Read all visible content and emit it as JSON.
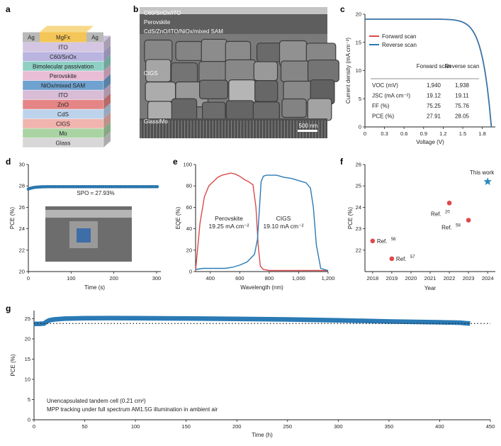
{
  "colors": {
    "red": "#d94b4b",
    "blue": "#2a7ab5",
    "scatter_red": "#e04848",
    "star": "#2a8aba",
    "dark": "#222222"
  },
  "panel_labels": {
    "a": "a",
    "b": "b",
    "c": "c",
    "d": "d",
    "e": "e",
    "f": "f",
    "g": "g"
  },
  "panel_a": {
    "layers": [
      {
        "label": "Glass",
        "color": "#d7d7d7"
      },
      {
        "label": "Mo",
        "color": "#a9d3a3"
      },
      {
        "label": "CIGS",
        "color": "#f1b4ae"
      },
      {
        "label": "CdS",
        "color": "#bdd3ec"
      },
      {
        "label": "ZnO",
        "color": "#e58585"
      },
      {
        "label": "ITO",
        "color": "#d9bcd6"
      },
      {
        "label": "NiOx/mixed SAM",
        "color": "#6fa2cf"
      },
      {
        "label": "Perovskite",
        "color": "#e9bdd6"
      },
      {
        "label": "Bimolecular passivation",
        "color": "#8fcfc4"
      },
      {
        "label": "C60/SnOx",
        "color": "#b9b5e0"
      },
      {
        "label": "ITO",
        "color": "#d4c6e2"
      }
    ],
    "top": {
      "left": "Ag",
      "center": "MgFx",
      "right": "Ag"
    }
  },
  "panel_b": {
    "labels": {
      "top": "C60/SnOx/ITO",
      "perovskite": "Perovskite",
      "stack": "CdS/ZnO/ITO/NiOx/mixed SAM",
      "cigs": "CIGS",
      "glass": "Glass/Mo"
    },
    "scalebar": "500 nm"
  },
  "chart_data": [
    {
      "panel": "c",
      "type": "line",
      "xlabel": "Voltage (V)",
      "ylabel": "Current density (mA cm⁻²)",
      "xlim": [
        0,
        2.0
      ],
      "ylim": [
        0,
        20
      ],
      "xticks": [
        "0",
        "0.3",
        "0.6",
        "0.9",
        "1.2",
        "1.5",
        "1.8"
      ],
      "yticks": [
        "0",
        "5",
        "10",
        "15",
        "20"
      ],
      "legend": "top-left",
      "series": [
        {
          "name": "Forward scan",
          "color": "#d94b4b",
          "voc": 1.94,
          "jsc": 19.12
        },
        {
          "name": "Reverse scan",
          "color": "#2a7ab5",
          "voc": 1.938,
          "jsc": 19.11
        }
      ],
      "table": {
        "headers": [
          "",
          "Forward scan",
          "Reverse scan"
        ],
        "rows": [
          [
            "VOC (mV)",
            "1,940",
            "1,938"
          ],
          [
            "JSC (mA cm⁻²)",
            "19.12",
            "19.11"
          ],
          [
            "FF (%)",
            "75.25",
            "75.76"
          ],
          [
            "PCE (%)",
            "27.91",
            "28.05"
          ]
        ]
      }
    },
    {
      "panel": "d",
      "type": "scatter",
      "xlabel": "Time (s)",
      "ylabel": "PCE (%)",
      "xlim": [
        0,
        310
      ],
      "ylim": [
        20,
        30
      ],
      "xticks": [
        "0",
        "100",
        "200",
        "300"
      ],
      "yticks": [
        "20",
        "22",
        "24",
        "26",
        "28",
        "30"
      ],
      "annotation": "SPO = 27.93%",
      "series": [
        {
          "name": "SPO",
          "color": "#2a7ab5",
          "start": 27.7,
          "steady": 27.93
        }
      ]
    },
    {
      "panel": "e",
      "type": "line",
      "xlabel": "Wavelength (nm)",
      "ylabel": "EQE (%)",
      "xlim": [
        300,
        1200
      ],
      "ylim": [
        0,
        100
      ],
      "xticks": [
        "400",
        "600",
        "800",
        "1,000",
        "1,200"
      ],
      "yticks": [
        "0",
        "20",
        "40",
        "60",
        "80",
        "100"
      ],
      "series": [
        {
          "name": "Perovskite",
          "color": "#d94b4b",
          "label": "Perovskite",
          "value": "19.25 mA cm⁻²",
          "x": [
            300,
            330,
            360,
            390,
            420,
            450,
            480,
            510,
            540,
            570,
            600,
            630,
            660,
            690,
            710,
            725,
            740,
            760,
            800,
            900,
            1000,
            1100,
            1200
          ],
          "y": [
            1,
            45,
            70,
            80,
            84,
            88,
            90,
            91,
            92,
            91,
            89,
            86,
            84,
            81,
            60,
            25,
            5,
            2,
            1,
            1,
            1,
            1,
            1
          ]
        },
        {
          "name": "CIGS",
          "color": "#2a7ab5",
          "label": "CIGS",
          "value": "19.10 mA cm⁻²",
          "x": [
            300,
            350,
            400,
            450,
            500,
            550,
            600,
            650,
            700,
            720,
            735,
            745,
            760,
            780,
            800,
            850,
            900,
            950,
            1000,
            1050,
            1080,
            1100,
            1120,
            1150,
            1200
          ],
          "y": [
            2,
            3,
            3,
            3,
            3,
            4,
            6,
            9,
            16,
            30,
            62,
            84,
            89,
            90,
            90,
            90,
            88,
            87,
            85,
            83,
            78,
            60,
            25,
            3,
            1
          ]
        }
      ]
    },
    {
      "panel": "f",
      "type": "scatter",
      "xlabel": "Year",
      "ylabel": "PCE (%)",
      "xlim": [
        2017.6,
        2024.4
      ],
      "ylim": [
        21,
        26
      ],
      "xticks": [
        "2018",
        "2019",
        "2020",
        "2021",
        "2022",
        "2023",
        "2024"
      ],
      "yticks": [
        "22",
        "23",
        "24",
        "25",
        "26"
      ],
      "points": [
        {
          "x": 2018,
          "y": 22.43,
          "label": "Ref.",
          "ref": "56"
        },
        {
          "x": 2019,
          "y": 21.6,
          "label": "Ref.",
          "ref": "57"
        },
        {
          "x": 2022,
          "y": 24.2,
          "label": "Ref.",
          "ref": "20"
        },
        {
          "x": 2023,
          "y": 23.4,
          "label": "Ref.",
          "ref": "58"
        },
        {
          "x": 2024,
          "y": 25.2,
          "label": "This work",
          "star": true
        }
      ]
    },
    {
      "panel": "g",
      "type": "line",
      "xlabel": "Time (h)",
      "ylabel": "PCE (%)",
      "xlim": [
        0,
        450
      ],
      "ylim": [
        0,
        27
      ],
      "xticks": [
        "0",
        "50",
        "100",
        "150",
        "200",
        "250",
        "300",
        "350",
        "400",
        "450"
      ],
      "yticks": [
        "0",
        "5",
        "10",
        "15",
        "20",
        "25"
      ],
      "reference_line": 23.8,
      "annotation": [
        "Unencapsulated tandem cell (0.21 cm²)",
        "MPP tracking under full spectrum AM1.5G illumination in ambient air"
      ],
      "series": [
        {
          "name": "MPP",
          "color": "#2a7ab5",
          "x": [
            0,
            5,
            10,
            12,
            15,
            20,
            30,
            50,
            75,
            100,
            150,
            200,
            250,
            300,
            350,
            400,
            420,
            425,
            430
          ],
          "y": [
            23.7,
            23.7,
            23.8,
            24.2,
            24.6,
            24.8,
            25.0,
            25.1,
            25.15,
            25.1,
            25.05,
            24.95,
            24.8,
            24.6,
            24.3,
            24.1,
            24.0,
            23.9,
            23.8
          ]
        }
      ]
    }
  ]
}
